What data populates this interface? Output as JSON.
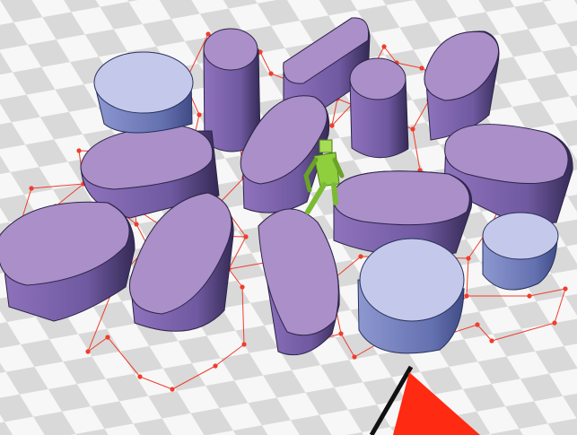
{
  "scene": {
    "kind": "3d-simulation-viewport",
    "colors": {
      "floor_light": "#f7f7f7",
      "floor_dark": "#d9d9d9",
      "obstacle_purple_top": "#a98bc6",
      "obstacle_purple_side": "#5b4a8a",
      "obstacle_purple_dark": "#2c2348",
      "cylinder_top": "#c4c8ea",
      "cylinder_side": "#6c7ab6",
      "path_red": "#ef3d2c",
      "agent_green": "#8fce3c",
      "goal_flag_red": "#ff2a12",
      "goal_pole": "#111111"
    },
    "icons": {
      "agent": "humanoid-agent-icon",
      "goal": "goal-flag-icon",
      "path": "planned-path-graph"
    },
    "counts": {
      "capsule_obstacles": 11,
      "cylinder_obstacles": 3
    }
  }
}
